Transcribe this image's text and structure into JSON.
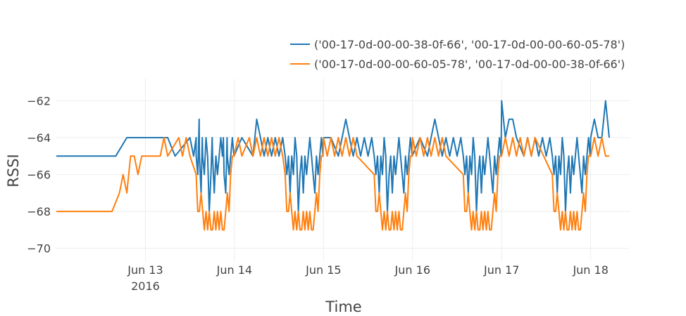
{
  "chart_data": {
    "type": "line",
    "title": "",
    "xlabel": "Time",
    "ylabel": "RSSI",
    "xlim": [
      "2016-06-12T00:00",
      "2016-06-18T10:30"
    ],
    "ylim": [
      -70.7,
      -60.8
    ],
    "yticks": [
      -62,
      -64,
      -66,
      -68,
      -70
    ],
    "yticklabels": [
      "−62",
      "−64",
      "−66",
      "−68",
      "−70"
    ],
    "xticks": [
      {
        "date": "2016-06-13",
        "label": "Jun 13",
        "sublabel": "2016"
      },
      {
        "date": "2016-06-14",
        "label": "Jun 14",
        "sublabel": ""
      },
      {
        "date": "2016-06-15",
        "label": "Jun 15",
        "sublabel": ""
      },
      {
        "date": "2016-06-16",
        "label": "Jun 16",
        "sublabel": ""
      },
      {
        "date": "2016-06-17",
        "label": "Jun 17",
        "sublabel": ""
      },
      {
        "date": "2016-06-18",
        "label": "Jun 18",
        "sublabel": ""
      }
    ],
    "grid": true,
    "legend_position": "top-right",
    "series": [
      {
        "name": "('00-17-0d-00-00-38-0f-66', '00-17-0d-00-00-60-05-78')",
        "color": "#1f77b4",
        "points": [
          [
            "2016-06-12T00:00",
            -65
          ],
          [
            "2016-06-12T16:00",
            -65
          ],
          [
            "2016-06-12T19:00",
            -64
          ],
          [
            "2016-06-13T06:00",
            -64
          ],
          [
            "2016-06-13T08:00",
            -65
          ],
          [
            "2016-06-13T12:00",
            -64
          ],
          [
            "2016-06-13T13:00",
            -65
          ],
          [
            "2016-06-13T13:40",
            -64
          ],
          [
            "2016-06-13T14:30",
            -63
          ],
          [
            "2016-06-13T15:20",
            -64
          ],
          [
            "2016-06-13T18:00",
            -64
          ],
          [
            "2016-06-13T19:00",
            -65
          ],
          [
            "2016-06-13T21:00",
            -64
          ],
          [
            "2016-06-13T22:00",
            -64
          ],
          [
            "2016-06-13T23:00",
            -65
          ],
          [
            "2016-06-14T02:00",
            -64
          ],
          [
            "2016-06-14T05:00",
            -65
          ],
          [
            "2016-06-14T06:00",
            -63
          ],
          [
            "2016-06-14T07:00",
            -64
          ],
          [
            "2016-06-14T08:00",
            -65
          ],
          [
            "2016-06-14T09:00",
            -64
          ],
          [
            "2016-06-14T10:00",
            -65
          ],
          [
            "2016-06-14T11:00",
            -64
          ],
          [
            "2016-06-14T12:00",
            -65
          ],
          [
            "2016-06-14T13:00",
            -64
          ],
          [
            "2016-06-15T00:00",
            -64
          ],
          [
            "2016-06-15T02:00",
            -64
          ],
          [
            "2016-06-15T04:00",
            -65
          ],
          [
            "2016-06-15T06:00",
            -63
          ],
          [
            "2016-06-15T07:00",
            -64
          ],
          [
            "2016-06-15T08:00",
            -65
          ],
          [
            "2016-06-15T09:00",
            -64
          ],
          [
            "2016-06-15T10:00",
            -65
          ],
          [
            "2016-06-15T11:00",
            -64
          ],
          [
            "2016-06-15T12:00",
            -65
          ],
          [
            "2016-06-15T13:00",
            -64
          ],
          [
            "2016-06-16T02:00",
            -64
          ],
          [
            "2016-06-16T04:00",
            -65
          ],
          [
            "2016-06-16T05:00",
            -64
          ],
          [
            "2016-06-16T06:00",
            -63
          ],
          [
            "2016-06-16T07:00",
            -64
          ],
          [
            "2016-06-16T08:00",
            -65
          ],
          [
            "2016-06-16T09:00",
            -64
          ],
          [
            "2016-06-16T10:00",
            -65
          ],
          [
            "2016-06-16T11:00",
            -64
          ],
          [
            "2016-06-16T12:00",
            -65
          ],
          [
            "2016-06-16T13:00",
            -64
          ],
          [
            "2016-06-17T00:00",
            -62
          ],
          [
            "2016-06-17T01:00",
            -64
          ],
          [
            "2016-06-17T02:00",
            -63
          ],
          [
            "2016-06-17T03:00",
            -63
          ],
          [
            "2016-06-17T04:00",
            -64
          ],
          [
            "2016-06-17T06:00",
            -65
          ],
          [
            "2016-06-17T07:00",
            -64
          ],
          [
            "2016-06-17T08:00",
            -65
          ],
          [
            "2016-06-17T09:00",
            -64
          ],
          [
            "2016-06-17T10:00",
            -65
          ],
          [
            "2016-06-17T11:00",
            -64
          ],
          [
            "2016-06-17T12:00",
            -65
          ],
          [
            "2016-06-17T13:00",
            -64
          ],
          [
            "2016-06-18T00:00",
            -64
          ],
          [
            "2016-06-18T01:00",
            -63
          ],
          [
            "2016-06-18T02:00",
            -64
          ],
          [
            "2016-06-18T03:00",
            -64
          ],
          [
            "2016-06-18T04:00",
            -62
          ],
          [
            "2016-06-18T05:00",
            -64
          ]
        ],
        "dip_days": [
          "2016-06-13",
          "2016-06-14",
          "2016-06-15",
          "2016-06-16",
          "2016-06-17"
        ],
        "night_values": [
          -65,
          -66,
          -65,
          -67,
          -65,
          -66,
          -64,
          -65,
          -68,
          -66,
          -65,
          -67,
          -65,
          -66,
          -65,
          -64,
          -65,
          -66,
          -67,
          -65,
          -66,
          -65,
          -64,
          -65
        ]
      },
      {
        "name": "('00-17-0d-00-00-60-05-78', '00-17-0d-00-00-38-0f-66')",
        "color": "#ff7f0e",
        "points": [
          [
            "2016-06-12T00:00",
            -68
          ],
          [
            "2016-06-12T15:00",
            -68
          ],
          [
            "2016-06-12T17:00",
            -67
          ],
          [
            "2016-06-12T18:00",
            -66
          ],
          [
            "2016-06-12T19:00",
            -67
          ],
          [
            "2016-06-12T20:00",
            -65
          ],
          [
            "2016-06-12T21:00",
            -65
          ],
          [
            "2016-06-12T22:00",
            -66
          ],
          [
            "2016-06-12T23:00",
            -65
          ],
          [
            "2016-06-13T04:00",
            -65
          ],
          [
            "2016-06-13T05:00",
            -64
          ],
          [
            "2016-06-13T06:00",
            -65
          ],
          [
            "2016-06-13T09:00",
            -64
          ],
          [
            "2016-06-13T10:00",
            -65
          ],
          [
            "2016-06-13T11:00",
            -64
          ],
          [
            "2016-06-13T12:00",
            -65
          ],
          [
            "2016-06-14T01:00",
            -64
          ],
          [
            "2016-06-14T02:00",
            -65
          ],
          [
            "2016-06-14T04:00",
            -64
          ],
          [
            "2016-06-14T05:00",
            -65
          ],
          [
            "2016-06-14T06:00",
            -64
          ],
          [
            "2016-06-14T07:00",
            -65
          ],
          [
            "2016-06-14T08:00",
            -64
          ],
          [
            "2016-06-14T09:00",
            -65
          ],
          [
            "2016-06-14T10:00",
            -64
          ],
          [
            "2016-06-14T11:00",
            -65
          ],
          [
            "2016-06-14T12:00",
            -64
          ],
          [
            "2016-06-14T13:00",
            -65
          ],
          [
            "2016-06-15T00:00",
            -64
          ],
          [
            "2016-06-15T01:00",
            -65
          ],
          [
            "2016-06-15T02:00",
            -64
          ],
          [
            "2016-06-15T03:00",
            -65
          ],
          [
            "2016-06-15T04:00",
            -64
          ],
          [
            "2016-06-15T05:00",
            -65
          ],
          [
            "2016-06-15T06:00",
            -64
          ],
          [
            "2016-06-15T07:00",
            -65
          ],
          [
            "2016-06-15T08:00",
            -64
          ],
          [
            "2016-06-15T09:00",
            -65
          ],
          [
            "2016-06-16T00:00",
            -64
          ],
          [
            "2016-06-16T01:00",
            -65
          ],
          [
            "2016-06-16T02:00",
            -64
          ],
          [
            "2016-06-16T03:00",
            -65
          ],
          [
            "2016-06-16T04:00",
            -64
          ],
          [
            "2016-06-16T05:00",
            -65
          ],
          [
            "2016-06-16T06:00",
            -64
          ],
          [
            "2016-06-16T07:00",
            -65
          ],
          [
            "2016-06-16T08:00",
            -64
          ],
          [
            "2016-06-16T09:00",
            -65
          ],
          [
            "2016-06-17T00:00",
            -65
          ],
          [
            "2016-06-17T01:00",
            -64
          ],
          [
            "2016-06-17T02:00",
            -65
          ],
          [
            "2016-06-17T03:00",
            -64
          ],
          [
            "2016-06-17T04:00",
            -65
          ],
          [
            "2016-06-17T05:00",
            -64
          ],
          [
            "2016-06-17T06:00",
            -65
          ],
          [
            "2016-06-17T07:00",
            -64
          ],
          [
            "2016-06-17T08:00",
            -65
          ],
          [
            "2016-06-17T09:00",
            -64
          ],
          [
            "2016-06-18T00:00",
            -65
          ],
          [
            "2016-06-18T01:00",
            -64
          ],
          [
            "2016-06-18T02:00",
            -65
          ],
          [
            "2016-06-18T03:00",
            -64
          ],
          [
            "2016-06-18T04:00",
            -65
          ],
          [
            "2016-06-18T05:00",
            -65
          ]
        ],
        "dip_days": [
          "2016-06-13",
          "2016-06-14",
          "2016-06-15",
          "2016-06-16",
          "2016-06-17"
        ],
        "night_values": [
          -66,
          -68,
          -68,
          -67,
          -68,
          -69,
          -68,
          -69,
          -68,
          -69,
          -69,
          -68,
          -69,
          -68,
          -69,
          -68,
          -69,
          -69,
          -68,
          -67,
          -68,
          -66,
          -65,
          -65
        ]
      }
    ]
  }
}
